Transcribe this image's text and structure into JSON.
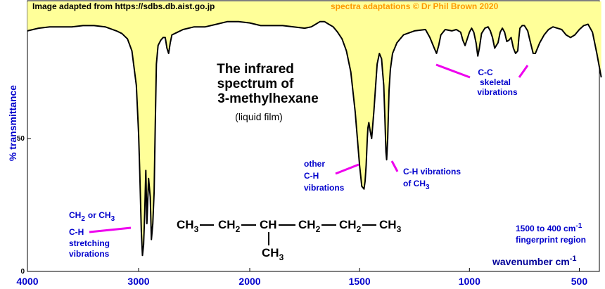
{
  "header": {
    "source": "Image adapted from https://sdbs.db.aist.go.jp",
    "credit": "spectra adaptations © Dr Phil Brown 2020"
  },
  "title": {
    "line1": "The infrared",
    "line2": "spectrum of",
    "line3": "3-methylhexane",
    "sub": "(liquid film)"
  },
  "annotations": {
    "ch_stretch": {
      "ch": "CH",
      "sub2": "2",
      "or": "or CH",
      "sub3": "3",
      "line2": "C-H",
      "line3": "stretching",
      "line4": "vibrations"
    },
    "other_ch": {
      "line1": "other",
      "line2": "C-H",
      "line3": "vibrations"
    },
    "ch3_vib": {
      "line1": "C-H vibrations",
      "line2": "of CH",
      "sub": "3"
    },
    "cc_skeletal": {
      "line1": "C-C",
      "line2": "skeletal",
      "line3": "vibrations"
    },
    "fingerprint": {
      "line1": "1500 to 400 cm",
      "sup": "-1",
      "line2": "fingerprint region"
    },
    "wavenumber": {
      "label": "wavenumber  cm",
      "sup": "-1"
    }
  },
  "formula": {
    "g1": "CH",
    "s1": "3",
    "g2": "CH",
    "s2": "2",
    "g3": "CH",
    "g4": "CH",
    "s4": "2",
    "g5": "CH",
    "s5": "2",
    "g6": "CH",
    "s6": "3",
    "branch": "CH",
    "sbranch": "3"
  },
  "colors": {
    "fill": "#ffff99",
    "annotation": "#0000cc",
    "pointer": "#ee00ee",
    "credit": "#ff9900"
  },
  "chart_data": {
    "type": "line",
    "ylabel": "% transmittance",
    "xlabel": "wavenumber cm-1",
    "xlim": [
      4000,
      400
    ],
    "ylim": [
      0,
      100
    ],
    "x_reversed": true,
    "grid": false,
    "x_ticks": [
      "4000",
      "3000",
      "2000",
      "1500",
      "1000",
      "500"
    ],
    "y_ticks": [
      "0",
      "50"
    ],
    "series": [
      {
        "x": [
          4000,
          3900,
          3800,
          3700,
          3600,
          3500,
          3400,
          3300,
          3200,
          3150,
          3100,
          3060,
          3020,
          3000,
          2990,
          2975,
          2965,
          2955,
          2945,
          2935,
          2925,
          2910,
          2895,
          2885,
          2872,
          2860,
          2850,
          2840,
          2825,
          2800,
          2780,
          2760,
          2745,
          2730,
          2715,
          2700,
          2650,
          2600,
          2500,
          2400,
          2300,
          2200,
          2100,
          2000,
          1950,
          1900,
          1850,
          1800,
          1750,
          1720,
          1700,
          1680,
          1660,
          1640,
          1620,
          1600,
          1580,
          1560,
          1540,
          1520,
          1500,
          1490,
          1480,
          1475,
          1470,
          1465,
          1462,
          1458,
          1452,
          1445,
          1435,
          1420,
          1410,
          1400,
          1395,
          1390,
          1385,
          1380,
          1377,
          1372,
          1366,
          1360,
          1350,
          1330,
          1300,
          1250,
          1200,
          1180,
          1160,
          1150,
          1140,
          1130,
          1110,
          1080,
          1060,
          1040,
          1030,
          1020,
          1000,
          990,
          980,
          970,
          962,
          955,
          945,
          930,
          915,
          905,
          895,
          885,
          870,
          860,
          850,
          840,
          830,
          820,
          810,
          800,
          790,
          780,
          775,
          770,
          760,
          750,
          735,
          725,
          710,
          700,
          680,
          660,
          640,
          620,
          600,
          580,
          560,
          540,
          520,
          500,
          480,
          460,
          440,
          420,
          400
        ],
        "y": [
          90.5,
          91.5,
          92,
          92,
          92,
          92.5,
          92.5,
          92,
          90.5,
          89.5,
          87.5,
          83,
          70,
          52,
          38,
          15,
          6,
          10,
          22,
          38,
          18,
          35,
          28,
          12,
          18,
          30,
          55,
          78,
          85,
          87,
          88,
          88,
          84,
          82,
          86,
          89,
          90,
          91,
          92,
          92,
          93,
          94,
          94,
          93.5,
          92.5,
          92.5,
          92.5,
          92,
          91.5,
          92,
          93,
          94,
          94,
          93,
          92,
          90,
          87.5,
          83,
          75,
          60,
          40,
          32,
          31,
          34,
          40,
          50,
          54,
          56,
          53,
          50,
          60,
          78,
          82,
          80,
          75,
          70,
          58,
          45,
          42,
          50,
          68,
          76,
          82,
          86,
          89,
          90.5,
          91,
          88,
          84,
          82,
          85,
          89,
          91,
          90.5,
          91,
          90,
          87,
          85,
          90,
          91.5,
          90,
          86,
          81,
          84,
          89.5,
          91.5,
          92,
          90.5,
          88,
          84,
          86,
          90,
          91.5,
          90,
          86.5,
          87,
          88,
          84,
          82,
          83,
          88,
          91.5,
          92.5,
          92.5,
          90.5,
          87,
          82,
          82,
          86,
          89,
          91,
          92,
          91.5,
          91,
          89,
          88,
          89,
          91,
          92.5,
          93,
          90,
          82,
          73
        ]
      }
    ]
  }
}
